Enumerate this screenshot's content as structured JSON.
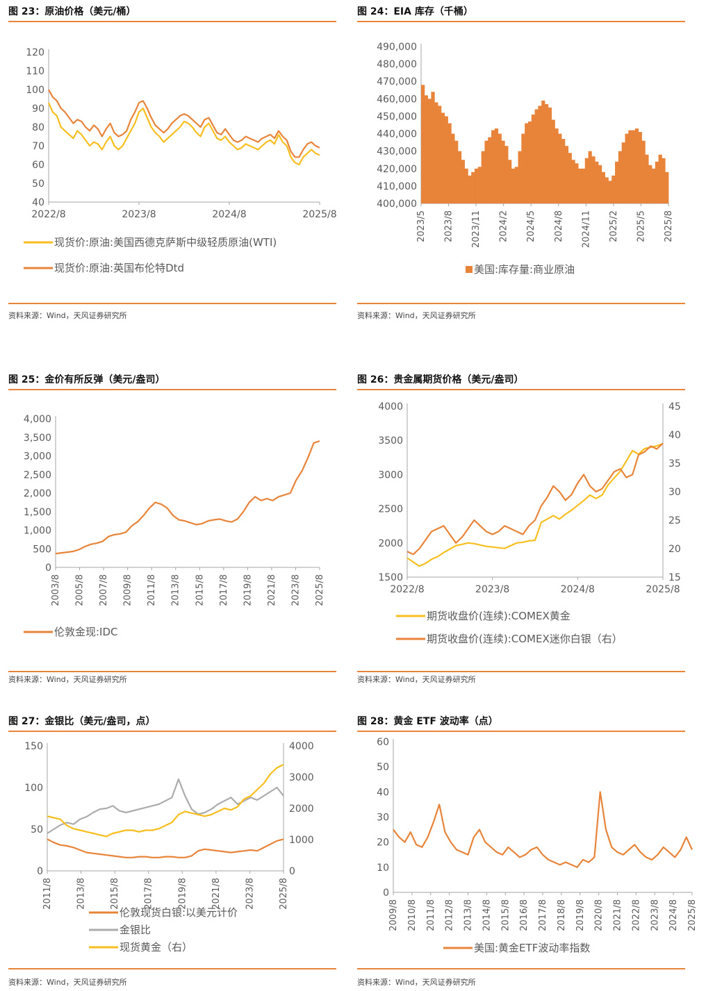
{
  "colors": {
    "orange": "#E8833A",
    "yellow": "#F7BE1E",
    "gray": "#ABABAB",
    "axis": "#A6A6A6",
    "text": "#595959"
  },
  "source_label": "资料来源：Wind，天风证券研究所",
  "panels": [
    {
      "title": "图 23：原油价格（美元/桶）"
    },
    {
      "title": "图 24：EIA 库存（千桶）"
    },
    {
      "title": "图 25：金价有所反弹（美元/盎司）"
    },
    {
      "title": "图 26：贵金属期货价格（美元/盎司）"
    },
    {
      "title": "图 27：金银比（美元/盎司，点）"
    },
    {
      "title": "图 28：黄金 ETF 波动率（点）"
    }
  ],
  "chart_data": [
    {
      "type": "line",
      "title": "图 23：原油价格（美元/桶）",
      "x_ticks": [
        "2022/8",
        "2023/8",
        "2024/8",
        "2025/8"
      ],
      "y_ticks": [
        "120",
        "110",
        "100",
        "90",
        "80",
        "70",
        "60",
        "50",
        "40"
      ],
      "ylim": [
        40,
        120
      ],
      "series": [
        {
          "name": "现货价:原油:美国西德克萨斯中级轻质原油(WTI)",
          "color": "yellow",
          "values": [
            93,
            88,
            86,
            80,
            78,
            76,
            74,
            78,
            76,
            73,
            70,
            72,
            71,
            68,
            72,
            75,
            70,
            68,
            70,
            74,
            78,
            82,
            88,
            90,
            85,
            80,
            77,
            75,
            72,
            74,
            76,
            78,
            80,
            83,
            82,
            80,
            77,
            75,
            80,
            82,
            78,
            74,
            73,
            75,
            72,
            70,
            68,
            69,
            71,
            70,
            69,
            68,
            70,
            72,
            73,
            71,
            76,
            72,
            70,
            64,
            61,
            60,
            64,
            66,
            68,
            66,
            65
          ]
        },
        {
          "name": "现货价:原油:英国布伦特Dtd",
          "color": "orange",
          "values": [
            100,
            96,
            94,
            90,
            88,
            85,
            82,
            84,
            83,
            80,
            78,
            81,
            79,
            75,
            79,
            82,
            77,
            75,
            76,
            78,
            84,
            88,
            93,
            94,
            90,
            85,
            81,
            79,
            77,
            79,
            82,
            84,
            86,
            87,
            86,
            84,
            82,
            80,
            84,
            85,
            81,
            77,
            76,
            79,
            76,
            73,
            72,
            73,
            75,
            74,
            73,
            72,
            74,
            75,
            76,
            74,
            78,
            75,
            73,
            67,
            64,
            64,
            68,
            71,
            72,
            70,
            69
          ]
        }
      ]
    },
    {
      "type": "bar",
      "title": "图 24：EIA 库存（千桶）",
      "x_ticks": [
        "2023/5",
        "2023/8",
        "2023/11",
        "2024/2",
        "2024/5",
        "2024/8",
        "2024/11",
        "2025/2",
        "2025/5",
        "2025/8"
      ],
      "y_ticks": [
        "490,000",
        "480,000",
        "470,000",
        "460,000",
        "450,000",
        "440,000",
        "430,000",
        "420,000",
        "410,000",
        "400,000"
      ],
      "ylim": [
        400000,
        490000
      ],
      "series": [
        {
          "name": "美国:库存量:商业原油",
          "color": "orange",
          "values": [
            468000,
            462000,
            460000,
            464000,
            458000,
            456000,
            452000,
            450000,
            446000,
            440000,
            436000,
            430000,
            425000,
            420000,
            416000,
            418000,
            420000,
            421000,
            430000,
            436000,
            438000,
            442000,
            443000,
            440000,
            436000,
            433000,
            425000,
            420000,
            421000,
            430000,
            440000,
            446000,
            447000,
            451000,
            454000,
            456000,
            459000,
            457000,
            455000,
            448000,
            443000,
            440000,
            437000,
            433000,
            429000,
            425000,
            423000,
            420000,
            420000,
            426000,
            430000,
            427000,
            424000,
            422000,
            418000,
            415000,
            413000,
            416000,
            424000,
            430000,
            435000,
            440000,
            442000,
            442000,
            443000,
            441000,
            436000,
            428000,
            422000,
            420000,
            424000,
            428000,
            426000,
            418000
          ]
        }
      ]
    },
    {
      "type": "line",
      "title": "图 25：金价有所反弹（美元/盎司）",
      "x_ticks": [
        "2003/8",
        "2005/8",
        "2007/8",
        "2009/8",
        "2011/8",
        "2013/8",
        "2015/8",
        "2017/8",
        "2019/8",
        "2021/8",
        "2023/8",
        "2025/8"
      ],
      "y_ticks": [
        "4,000",
        "3,500",
        "3,000",
        "2,500",
        "2,000",
        "1,500",
        "1,000",
        "500",
        "0"
      ],
      "ylim": [
        0,
        4000
      ],
      "series": [
        {
          "name": "伦敦金现:IDC",
          "color": "orange",
          "values": [
            370,
            390,
            410,
            430,
            480,
            560,
            620,
            650,
            700,
            830,
            880,
            900,
            950,
            1120,
            1230,
            1400,
            1600,
            1750,
            1700,
            1600,
            1400,
            1280,
            1250,
            1200,
            1150,
            1180,
            1250,
            1280,
            1300,
            1250,
            1220,
            1300,
            1500,
            1750,
            1900,
            1800,
            1850,
            1800,
            1900,
            1950,
            2000,
            2350,
            2600,
            2950,
            3350,
            3400
          ]
        }
      ]
    },
    {
      "type": "line",
      "title": "图 26：贵金属期货价格（美元/盎司）",
      "x_ticks": [
        "2022/8",
        "2023/8",
        "2024/8",
        "2025/8"
      ],
      "y_ticks": [
        "4000",
        "3500",
        "3000",
        "2500",
        "2000",
        "1500"
      ],
      "y2_ticks": [
        "45",
        "40",
        "35",
        "30",
        "25",
        "20",
        "15"
      ],
      "ylim": [
        1500,
        4000
      ],
      "y2lim": [
        15,
        45
      ],
      "series": [
        {
          "name": "期货收盘价(连续):COMEX黄金",
          "color": "yellow",
          "axis": "left",
          "values": [
            1780,
            1720,
            1660,
            1700,
            1760,
            1800,
            1860,
            1910,
            1960,
            1980,
            2000,
            1990,
            1970,
            1950,
            1940,
            1930,
            1920,
            1960,
            2000,
            2010,
            2030,
            2040,
            2300,
            2350,
            2400,
            2350,
            2420,
            2480,
            2550,
            2620,
            2700,
            2650,
            2700,
            2850,
            2950,
            3050,
            3200,
            3350,
            3300,
            3380,
            3400,
            3420,
            3450
          ]
        },
        {
          "name": "期货收盘价(连续):COMEX迷你白银（右）",
          "color": "orange",
          "axis": "right",
          "values": [
            19.5,
            19.0,
            20.0,
            21.5,
            23.0,
            23.5,
            24.0,
            22.5,
            21.0,
            22.0,
            23.5,
            25.0,
            24.0,
            23.0,
            22.5,
            23.0,
            24.0,
            23.5,
            23.0,
            22.5,
            24.0,
            25.0,
            27.5,
            29.0,
            31.0,
            30.0,
            28.5,
            29.5,
            31.5,
            33.0,
            31.0,
            30.0,
            30.5,
            32.0,
            33.5,
            34.0,
            32.5,
            33.0,
            36.5,
            37.0,
            38.0,
            37.5,
            38.5
          ]
        }
      ]
    },
    {
      "type": "line",
      "title": "图 27：金银比（美元/盎司，点）",
      "x_ticks": [
        "2011/8",
        "2013/8",
        "2015/8",
        "2017/8",
        "2019/8",
        "2021/8",
        "2023/8",
        "2025/8"
      ],
      "y_ticks": [
        "150",
        "100",
        "50",
        "0"
      ],
      "y2_ticks": [
        "4000",
        "3000",
        "2000",
        "1000",
        "0"
      ],
      "ylim": [
        0,
        150
      ],
      "y2lim": [
        0,
        4000
      ],
      "series": [
        {
          "name": "伦敦现货白银:以美元计价",
          "color": "orange",
          "axis": "left",
          "values": [
            38,
            34,
            31,
            30,
            28,
            25,
            22,
            21,
            20,
            19,
            18,
            17,
            16,
            16,
            17,
            17,
            16,
            16,
            17,
            17,
            16,
            16,
            18,
            24,
            26,
            25,
            24,
            23,
            22,
            23,
            24,
            25,
            24,
            28,
            32,
            36,
            38
          ]
        },
        {
          "name": "金银比",
          "color": "gray",
          "axis": "left",
          "values": [
            45,
            50,
            55,
            58,
            56,
            62,
            65,
            70,
            74,
            75,
            78,
            72,
            70,
            72,
            74,
            76,
            78,
            80,
            84,
            88,
            110,
            90,
            74,
            68,
            70,
            74,
            80,
            84,
            88,
            80,
            84,
            88,
            85,
            90,
            95,
            100,
            90
          ]
        },
        {
          "name": "现货黄金（右）",
          "color": "yellow",
          "axis": "right",
          "values": [
            1750,
            1700,
            1650,
            1450,
            1350,
            1300,
            1250,
            1200,
            1150,
            1100,
            1200,
            1250,
            1300,
            1300,
            1250,
            1300,
            1300,
            1350,
            1450,
            1550,
            1800,
            1900,
            1850,
            1800,
            1750,
            1800,
            1900,
            2000,
            1950,
            2050,
            2300,
            2400,
            2600,
            2800,
            3100,
            3300,
            3400
          ]
        }
      ]
    },
    {
      "type": "line",
      "title": "图 28：黄金 ETF 波动率（点）",
      "x_ticks": [
        "2009/8",
        "2010/8",
        "2011/8",
        "2012/8",
        "2013/8",
        "2014/8",
        "2015/8",
        "2016/8",
        "2017/8",
        "2018/8",
        "2019/8",
        "2020/8",
        "2021/8",
        "2022/8",
        "2023/8",
        "2024/8",
        "2025/8"
      ],
      "y_ticks": [
        "60",
        "50",
        "40",
        "30",
        "20",
        "10",
        "0"
      ],
      "ylim": [
        0,
        60
      ],
      "series": [
        {
          "name": "美国:黄金ETF波动率指数",
          "color": "orange",
          "values": [
            25,
            22,
            20,
            24,
            19,
            18,
            22,
            28,
            35,
            24,
            20,
            17,
            16,
            15,
            22,
            25,
            20,
            18,
            16,
            15,
            18,
            16,
            14,
            15,
            17,
            18,
            15,
            13,
            12,
            11,
            12,
            11,
            10,
            13,
            12,
            14,
            40,
            25,
            18,
            16,
            15,
            17,
            19,
            16,
            14,
            13,
            15,
            18,
            16,
            14,
            17,
            22,
            17
          ]
        }
      ]
    }
  ]
}
